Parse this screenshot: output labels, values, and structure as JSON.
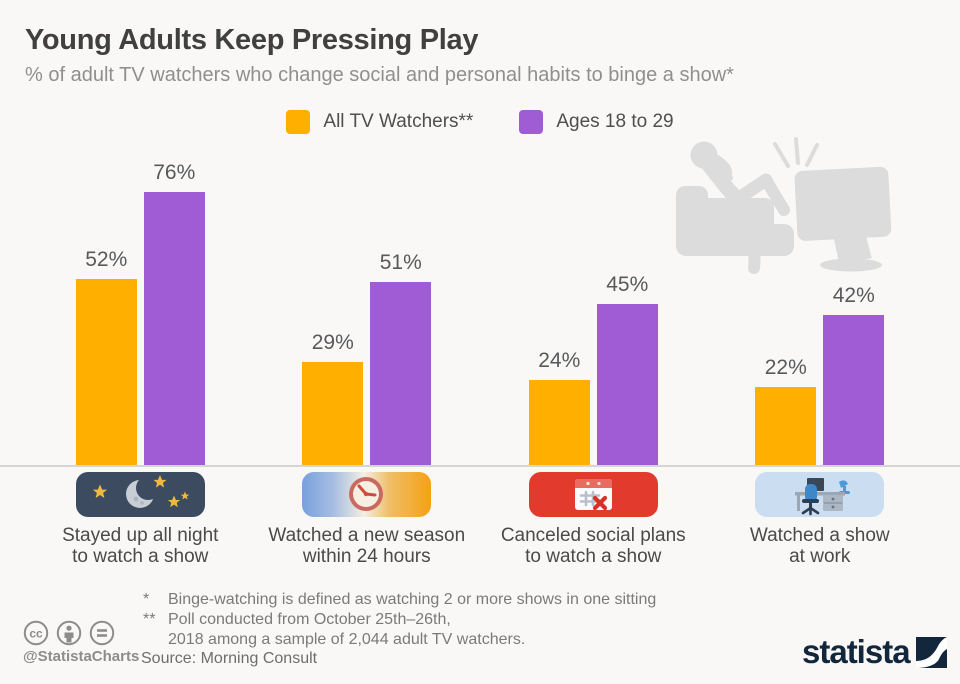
{
  "header": {
    "title": "Young Adults Keep Pressing Play",
    "subtitle": "% of adult TV watchers who change social and personal habits to binge a show*"
  },
  "legend": [
    {
      "label": "All TV Watchers**",
      "color": "#FFAF00"
    },
    {
      "label": "Ages 18 to 29",
      "color": "#A05CD5"
    }
  ],
  "chart_data": {
    "type": "bar",
    "categories": [
      "Stayed up all night to watch a show",
      "Watched a new season within 24 hours",
      "Canceled social plans to watch a show",
      "Watched a show at work"
    ],
    "category_lines": [
      [
        "Stayed up all night",
        "to watch a show"
      ],
      [
        "Watched a new season",
        "within 24 hours"
      ],
      [
        "Canceled social plans",
        "to watch a show"
      ],
      [
        "Watched a show",
        "at work"
      ]
    ],
    "series": [
      {
        "name": "All TV Watchers**",
        "color": "#FFAF00",
        "values": [
          52,
          29,
          24,
          22
        ]
      },
      {
        "name": "Ages 18 to 29",
        "color": "#A05CD5",
        "values": [
          76,
          51,
          45,
          42
        ]
      }
    ],
    "value_suffix": "%",
    "ylim": [
      0,
      100
    ],
    "grid": false,
    "legend_position": "top",
    "icons": [
      "night-moon-stars",
      "clock-24-hours",
      "calendar-canceled",
      "office-desk"
    ]
  },
  "footnotes": [
    {
      "marker": "*",
      "text": "Binge-watching is defined as watching 2 or more shows in one sitting"
    },
    {
      "marker": "**",
      "text": "Poll conducted from October 25th–26th,"
    },
    {
      "marker": "",
      "text": "2018 among a sample of 2,044 adult TV watchers."
    }
  ],
  "footer": {
    "cc_handle": "@StatistaCharts",
    "source": "Source: Morning Consult",
    "brand": "statista"
  },
  "colors": {
    "background": "#F9F8F6",
    "title": "#404040",
    "subtitle": "#8F8F8F",
    "orange": "#FFAF00",
    "purple": "#A05CD5",
    "baseline": "#D6D5D3",
    "footnote": "#7A7A7A",
    "brand_navy": "#13273C",
    "illustration_gray": "#DCDCDC"
  }
}
